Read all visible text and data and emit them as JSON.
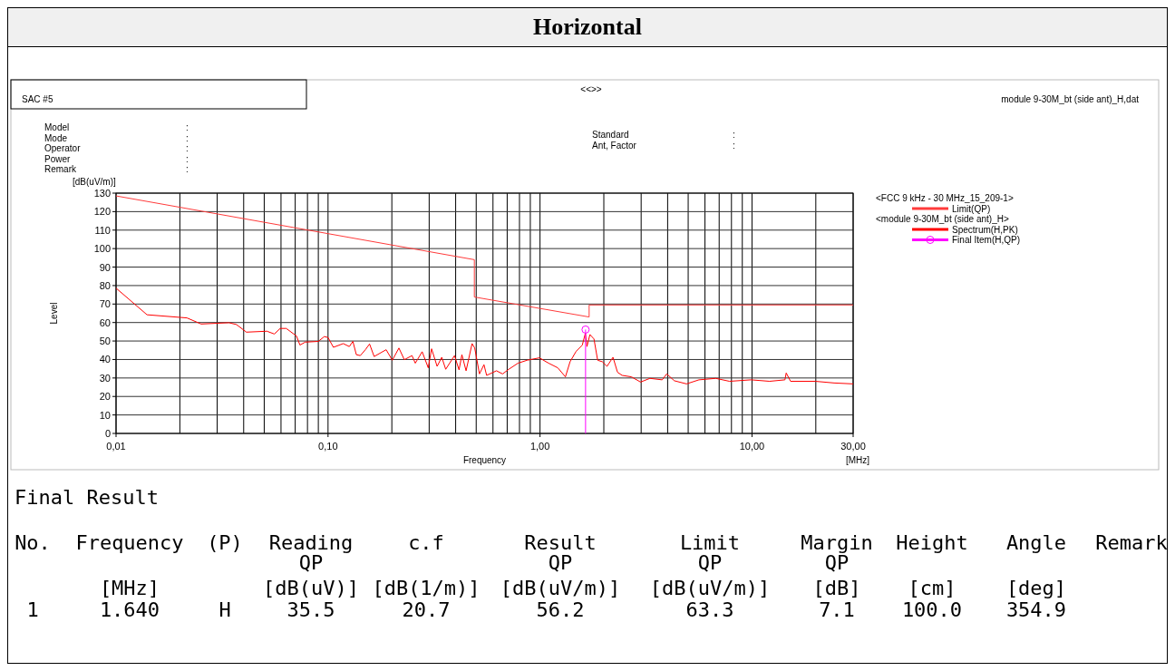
{
  "chart_data": {
    "type": "line",
    "title": "Horizontal",
    "xlabel": "Frequency",
    "ylabel": "Level",
    "log": "x",
    "grid": true,
    "legend": "right",
    "xlim": [
      0.01,
      30
    ],
    "ylim": [
      0,
      130
    ],
    "xticks": [
      {
        "value": 0.01,
        "label": "0,01"
      },
      {
        "value": 0.1,
        "label": "0,10"
      },
      {
        "value": 1,
        "label": "1,00"
      },
      {
        "value": 10,
        "label": "10,00"
      },
      {
        "value": 30,
        "label": "30,00"
      }
    ],
    "yticks": [
      0,
      10,
      20,
      30,
      40,
      50,
      60,
      70,
      80,
      90,
      100,
      110,
      120,
      130
    ],
    "annotations": [
      "SAC #5",
      "<<>>",
      "module 9-30M_bt (side ant)_H,dat",
      "Model\t:",
      "Mode\t:",
      "Operator\t:",
      "Power\t:",
      "Remark\t:",
      "Standard\t:",
      "Ant, Factor\t:",
      "Final Result",
      "No.\tFrequency\t(P)\tReading\tc.f\tResult\tLimit\tMargin\tHeight\tAngle\tRemark",
      "\t\t\tQP\t\tQP\tQP\tQP\t\t\t",
      "\t[MHz]\t\t[dB(uV)]\t[dB(1/m)]\t[dB(uV/m)]\t[dB(uV/m)]\t[dB]\t[cm]\t[deg]\t",
      "1\t1.640\tH\t35.5\t20.7\t56.2\t63.3\t7.1\t100.0\t354.9\t",
      "<FCC 9 kHz - 30 MHz_15_209-1>",
      "<module 9-30M_bt (side ant)_H>",
      "[dB(uV/m)]",
      "[MHz]"
    ],
    "series": [
      {
        "name": "Limit(QP)",
        "color": "#ff3b3b",
        "x": [
          0.01,
          0.49,
          0.49,
          1.705,
          1.705,
          30
        ],
        "values": [
          128.5,
          94,
          73.8,
          63,
          69.5,
          69.5
        ]
      },
      {
        "name": "Spectrum(H,PK)",
        "color": "#ff0000",
        "x": [
          0.01,
          0.014,
          0.0216,
          0.0252,
          0.0341,
          0.037,
          0.0412,
          0.0515,
          0.0558,
          0.0595,
          0.0635,
          0.071,
          0.0737,
          0.078,
          0.09,
          0.096,
          0.1,
          0.106,
          0.118,
          0.126,
          0.131,
          0.136,
          0.142,
          0.15,
          0.157,
          0.165,
          0.188,
          0.201,
          0.216,
          0.229,
          0.249,
          0.258,
          0.278,
          0.297,
          0.308,
          0.327,
          0.344,
          0.359,
          0.395,
          0.415,
          0.428,
          0.448,
          0.478,
          0.492,
          0.518,
          0.544,
          0.56,
          0.623,
          0.666,
          0.712,
          0.787,
          0.869,
          0.993,
          1.098,
          1.213,
          1.318,
          1.386,
          1.482,
          1.583,
          1.637,
          1.665,
          1.72,
          1.797,
          1.87,
          1.967,
          2.07,
          2.21,
          2.32,
          2.44,
          2.7,
          2.98,
          3.3,
          3.77,
          3.96,
          4.3,
          4.91,
          5.62,
          6.75,
          7.83,
          9.9,
          12.1,
          14.3,
          14.5,
          15.2,
          19.9,
          24.4,
          30
        ],
        "values": [
          78.6,
          64.2,
          62.5,
          59.2,
          59.9,
          58.9,
          54.8,
          55.3,
          53.8,
          56.8,
          56.8,
          52.7,
          47.8,
          49.4,
          49.8,
          52.4,
          51.9,
          46.6,
          48.6,
          47,
          49.8,
          42.6,
          42.1,
          45.3,
          48.4,
          41.6,
          45.3,
          39.6,
          46.2,
          39.9,
          42.1,
          38,
          44.2,
          35.5,
          45.8,
          36.3,
          41.2,
          34.7,
          42.1,
          34.4,
          42.6,
          33.9,
          48.6,
          46.2,
          32.2,
          37.2,
          31.4,
          33.9,
          32.2,
          34.7,
          38,
          39.6,
          40.9,
          38,
          35.5,
          30.6,
          38.8,
          44.5,
          47.8,
          54.3,
          47,
          53.5,
          51.1,
          39.6,
          38.8,
          36.3,
          41.2,
          33.1,
          31.4,
          30.6,
          27.8,
          29.8,
          29,
          32.2,
          28.5,
          26.8,
          29,
          29.8,
          28.2,
          29,
          28.2,
          29,
          32.7,
          28.2,
          28.2,
          27.3,
          26.8
        ]
      },
      {
        "name": "Final Item(H,QP)",
        "type": "lollipop",
        "color": "#ff00ff",
        "marker": "circle",
        "x": [
          1.64
        ],
        "values": [
          56.2
        ]
      }
    ]
  }
}
